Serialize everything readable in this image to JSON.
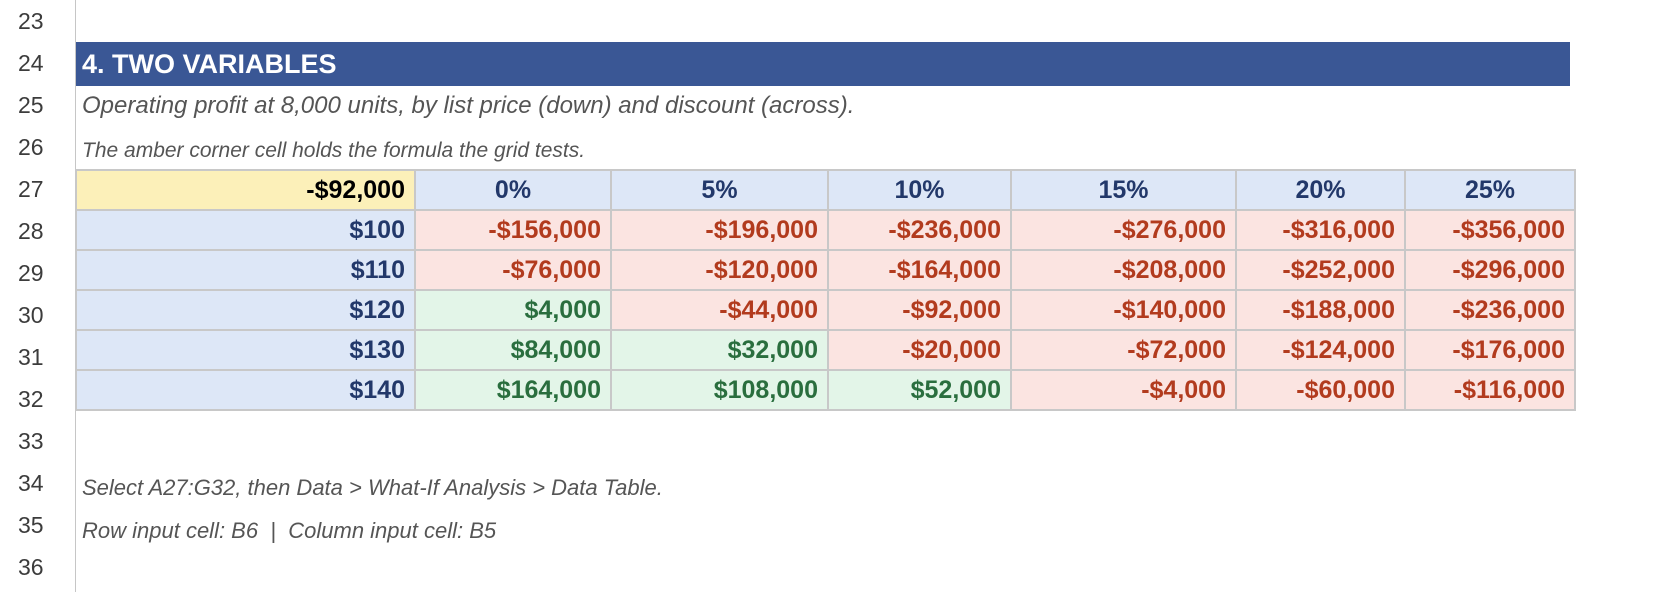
{
  "row_numbers": [
    "23",
    "24",
    "25",
    "26",
    "27",
    "28",
    "29",
    "30",
    "31",
    "32",
    "33",
    "34",
    "35",
    "36"
  ],
  "section": {
    "title": "4. TWO VARIABLES",
    "subtitle": "Operating profit at 8,000 units, by list price (down) and discount (across).",
    "note": "The amber corner cell holds the formula the grid tests."
  },
  "table": {
    "corner_value": "-$92,000",
    "column_headers": [
      "0%",
      "5%",
      "10%",
      "15%",
      "20%",
      "25%"
    ],
    "rows": [
      {
        "price": "$100",
        "values": [
          "-$156,000",
          "-$196,000",
          "-$236,000",
          "-$276,000",
          "-$316,000",
          "-$356,000"
        ]
      },
      {
        "price": "$110",
        "values": [
          "-$76,000",
          "-$120,000",
          "-$164,000",
          "-$208,000",
          "-$252,000",
          "-$296,000"
        ]
      },
      {
        "price": "$120",
        "values": [
          "$4,000",
          "-$44,000",
          "-$92,000",
          "-$140,000",
          "-$188,000",
          "-$236,000"
        ]
      },
      {
        "price": "$130",
        "values": [
          "$84,000",
          "$32,000",
          "-$20,000",
          "-$72,000",
          "-$124,000",
          "-$176,000"
        ]
      },
      {
        "price": "$140",
        "values": [
          "$164,000",
          "$108,000",
          "$52,000",
          "-$4,000",
          "-$60,000",
          "-$116,000"
        ]
      }
    ]
  },
  "instructions": {
    "line1": "Select A27:G32, then Data > What-If Analysis > Data Table.",
    "line2": "Row input cell: B6  |  Column input cell: B5"
  },
  "colors": {
    "banner": "#3a5795",
    "corner_fill": "#fcf0b9",
    "header_fill": "#dde7f7",
    "negative_fill": "#fbe4e1",
    "negative_text": "#b23b1e",
    "positive_fill": "#e3f5e8",
    "positive_text": "#2a6e3e"
  }
}
